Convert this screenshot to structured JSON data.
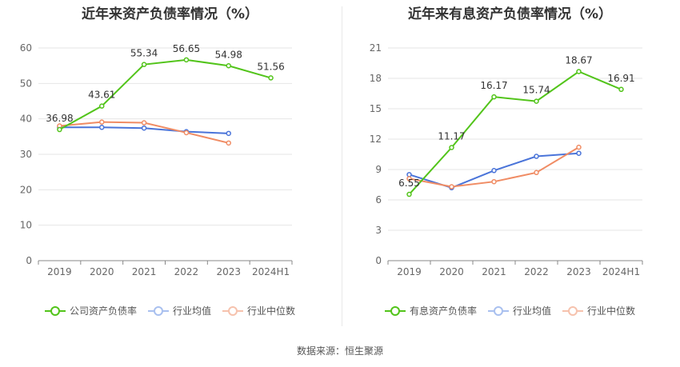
{
  "chart_data": [
    {
      "type": "line",
      "title": "近年来资产负债率情况（%）",
      "categories": [
        "2019",
        "2020",
        "2021",
        "2022",
        "2023",
        "2024H1"
      ],
      "ylim": [
        0,
        60
      ],
      "yticks": [
        0,
        10,
        20,
        30,
        40,
        50,
        60
      ],
      "grid": true,
      "legend_position": "bottom",
      "series": [
        {
          "name": "公司资产负债率",
          "color": "#52c41a",
          "values": [
            36.98,
            43.61,
            55.34,
            56.65,
            54.98,
            51.56
          ],
          "labels": [
            "36.98",
            "43.61",
            "55.34",
            "56.65",
            "54.98",
            "51.56"
          ]
        },
        {
          "name": "行业均值",
          "color": "#4a74d9",
          "values": [
            37.6,
            37.6,
            37.4,
            36.4,
            35.9,
            null
          ],
          "labels": []
        },
        {
          "name": "行业中位数",
          "color": "#f08c64",
          "values": [
            38.0,
            39.1,
            38.9,
            36.1,
            33.2,
            null
          ],
          "labels": []
        }
      ]
    },
    {
      "type": "line",
      "title": "近年来有息资产负债率情况（%）",
      "categories": [
        "2019",
        "2020",
        "2021",
        "2022",
        "2023",
        "2024H1"
      ],
      "ylim": [
        0,
        21
      ],
      "yticks": [
        0,
        3,
        6,
        9,
        12,
        15,
        18,
        21
      ],
      "grid": true,
      "legend_position": "bottom",
      "series": [
        {
          "name": "有息资产负债率",
          "color": "#52c41a",
          "values": [
            6.55,
            11.17,
            16.17,
            15.74,
            18.67,
            16.91
          ],
          "labels": [
            "6.55",
            "11.17",
            "16.17",
            "15.74",
            "18.67",
            "16.91"
          ]
        },
        {
          "name": "行业均值",
          "color": "#4a74d9",
          "values": [
            8.5,
            7.2,
            8.9,
            10.3,
            10.6,
            null
          ],
          "labels": []
        },
        {
          "name": "行业中位数",
          "color": "#f08c64",
          "values": [
            8.1,
            7.3,
            7.8,
            8.7,
            11.2,
            null
          ],
          "labels": []
        }
      ]
    }
  ],
  "source": "数据来源：恒生聚源"
}
